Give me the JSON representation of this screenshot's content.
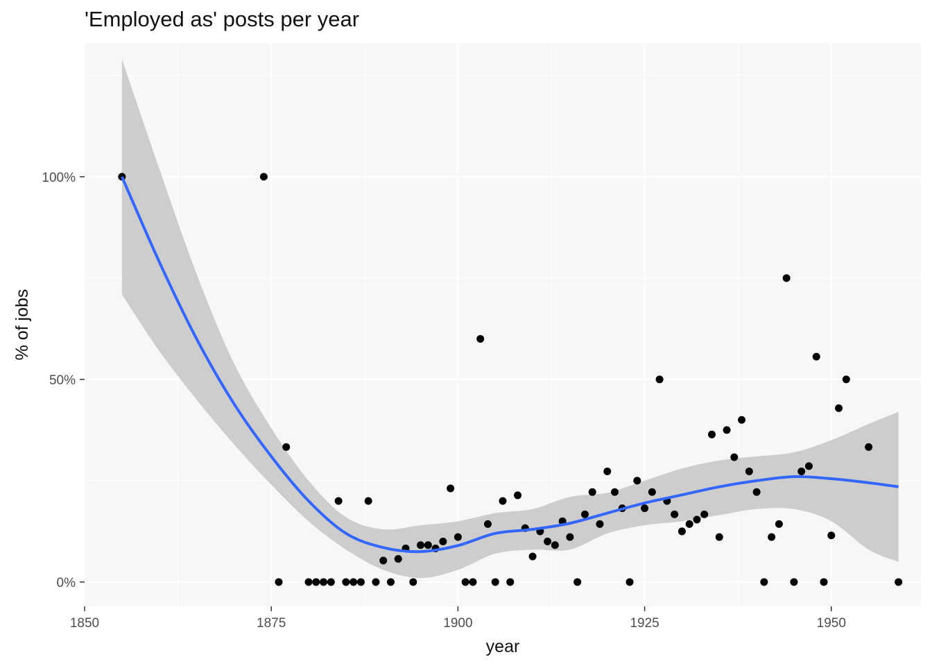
{
  "chart_data": {
    "type": "scatter",
    "title": "'Employed as' posts per year",
    "xlabel": "year",
    "ylabel": "% of jobs",
    "xlim": [
      1850,
      1962
    ],
    "ylim": [
      -0.06,
      1.33
    ],
    "x_ticks": [
      1850,
      1875,
      1900,
      1925,
      1950
    ],
    "x_tick_labels": [
      "1850",
      "1875",
      "1900",
      "1925",
      "1950"
    ],
    "y_ticks": [
      0,
      0.5,
      1
    ],
    "y_tick_labels": [
      "0%",
      "50%",
      "100%"
    ],
    "grid": true,
    "colors": {
      "panel": "#f7f7f7",
      "grid": "#ffffff",
      "points": "#000000",
      "smooth_line": "#3366ff",
      "ribbon": "#c8c8c8"
    },
    "points": [
      {
        "x": 1855,
        "y": 1.0
      },
      {
        "x": 1874,
        "y": 1.0
      },
      {
        "x": 1876,
        "y": 0.0
      },
      {
        "x": 1877,
        "y": 0.333
      },
      {
        "x": 1880,
        "y": 0.0
      },
      {
        "x": 1881,
        "y": 0.0
      },
      {
        "x": 1882,
        "y": 0.0
      },
      {
        "x": 1883,
        "y": 0.0
      },
      {
        "x": 1884,
        "y": 0.2
      },
      {
        "x": 1885,
        "y": 0.0
      },
      {
        "x": 1886,
        "y": 0.0
      },
      {
        "x": 1887,
        "y": 0.0
      },
      {
        "x": 1888,
        "y": 0.2
      },
      {
        "x": 1889,
        "y": 0.0
      },
      {
        "x": 1890,
        "y": 0.053
      },
      {
        "x": 1891,
        "y": 0.0
      },
      {
        "x": 1892,
        "y": 0.057
      },
      {
        "x": 1893,
        "y": 0.083
      },
      {
        "x": 1894,
        "y": 0.0
      },
      {
        "x": 1895,
        "y": 0.091
      },
      {
        "x": 1896,
        "y": 0.091
      },
      {
        "x": 1897,
        "y": 0.083
      },
      {
        "x": 1898,
        "y": 0.1
      },
      {
        "x": 1899,
        "y": 0.231
      },
      {
        "x": 1900,
        "y": 0.111
      },
      {
        "x": 1901,
        "y": 0.0
      },
      {
        "x": 1902,
        "y": 0.0
      },
      {
        "x": 1903,
        "y": 0.6
      },
      {
        "x": 1904,
        "y": 0.143
      },
      {
        "x": 1905,
        "y": 0.0
      },
      {
        "x": 1906,
        "y": 0.2
      },
      {
        "x": 1907,
        "y": 0.0
      },
      {
        "x": 1908,
        "y": 0.214
      },
      {
        "x": 1909,
        "y": 0.133
      },
      {
        "x": 1910,
        "y": 0.063
      },
      {
        "x": 1911,
        "y": 0.125
      },
      {
        "x": 1912,
        "y": 0.1
      },
      {
        "x": 1913,
        "y": 0.091
      },
      {
        "x": 1914,
        "y": 0.15
      },
      {
        "x": 1915,
        "y": 0.111
      },
      {
        "x": 1916,
        "y": 0.0
      },
      {
        "x": 1917,
        "y": 0.167
      },
      {
        "x": 1918,
        "y": 0.222
      },
      {
        "x": 1919,
        "y": 0.143
      },
      {
        "x": 1920,
        "y": 0.273
      },
      {
        "x": 1921,
        "y": 0.222
      },
      {
        "x": 1922,
        "y": 0.182
      },
      {
        "x": 1923,
        "y": 0.0
      },
      {
        "x": 1924,
        "y": 0.25
      },
      {
        "x": 1925,
        "y": 0.182
      },
      {
        "x": 1926,
        "y": 0.222
      },
      {
        "x": 1927,
        "y": 0.5
      },
      {
        "x": 1928,
        "y": 0.2
      },
      {
        "x": 1929,
        "y": 0.167
      },
      {
        "x": 1930,
        "y": 0.125
      },
      {
        "x": 1931,
        "y": 0.143
      },
      {
        "x": 1932,
        "y": 0.154
      },
      {
        "x": 1933,
        "y": 0.167
      },
      {
        "x": 1934,
        "y": 0.364
      },
      {
        "x": 1935,
        "y": 0.111
      },
      {
        "x": 1936,
        "y": 0.375
      },
      {
        "x": 1937,
        "y": 0.308
      },
      {
        "x": 1938,
        "y": 0.4
      },
      {
        "x": 1939,
        "y": 0.273
      },
      {
        "x": 1940,
        "y": 0.222
      },
      {
        "x": 1941,
        "y": 0.0
      },
      {
        "x": 1942,
        "y": 0.111
      },
      {
        "x": 1943,
        "y": 0.143
      },
      {
        "x": 1944,
        "y": 0.75
      },
      {
        "x": 1945,
        "y": 0.0
      },
      {
        "x": 1946,
        "y": 0.273
      },
      {
        "x": 1947,
        "y": 0.286
      },
      {
        "x": 1948,
        "y": 0.556
      },
      {
        "x": 1949,
        "y": 0.0
      },
      {
        "x": 1950,
        "y": 0.115
      },
      {
        "x": 1951,
        "y": 0.429
      },
      {
        "x": 1952,
        "y": 0.5
      },
      {
        "x": 1955,
        "y": 0.333
      },
      {
        "x": 1959,
        "y": 0.0
      }
    ],
    "smooth": {
      "x": [
        1855,
        1860,
        1865,
        1870,
        1875,
        1880,
        1885,
        1890,
        1895,
        1900,
        1905,
        1910,
        1915,
        1920,
        1925,
        1930,
        1935,
        1940,
        1945,
        1950,
        1955,
        1959
      ],
      "y": [
        1.0,
        0.79,
        0.6,
        0.44,
        0.31,
        0.2,
        0.12,
        0.085,
        0.075,
        0.09,
        0.12,
        0.13,
        0.145,
        0.17,
        0.195,
        0.215,
        0.235,
        0.25,
        0.26,
        0.255,
        0.245,
        0.235
      ],
      "lower": [
        0.71,
        0.57,
        0.45,
        0.34,
        0.24,
        0.15,
        0.08,
        0.03,
        0.01,
        0.03,
        0.07,
        0.08,
        0.08,
        0.12,
        0.14,
        0.15,
        0.165,
        0.18,
        0.18,
        0.15,
        0.08,
        0.05
      ],
      "upper": [
        1.29,
        1.02,
        0.76,
        0.54,
        0.38,
        0.25,
        0.16,
        0.13,
        0.14,
        0.15,
        0.17,
        0.18,
        0.21,
        0.22,
        0.25,
        0.28,
        0.3,
        0.31,
        0.32,
        0.35,
        0.39,
        0.42
      ]
    }
  }
}
